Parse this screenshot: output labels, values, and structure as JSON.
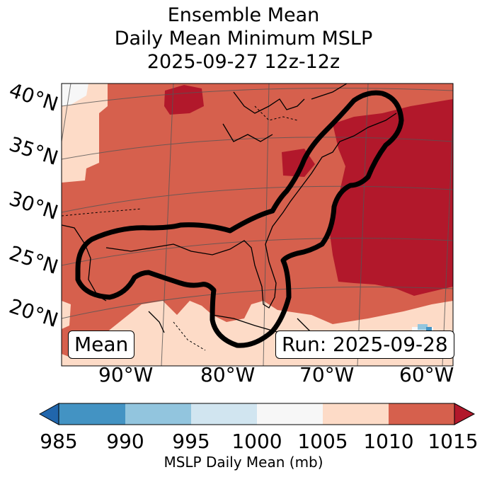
{
  "title": {
    "line1": "Ensemble Mean",
    "line2": "Daily Mean Minimum MSLP",
    "line3": "2025-09-27 12z-12z"
  },
  "lat_labels": [
    "40°N",
    "35°N",
    "30°N",
    "25°N",
    "20°N"
  ],
  "lon_labels": [
    "90°W",
    "80°W",
    "70°W",
    "60°W"
  ],
  "badges": {
    "mean": "Mean",
    "run": "Run: 2025-09-28"
  },
  "colorbar": {
    "ticks": [
      "985",
      "990",
      "995",
      "1000",
      "1005",
      "1010",
      "1015"
    ],
    "label": "MSLP Daily Mean (mb)",
    "colors": [
      "#2166ac",
      "#4393c3",
      "#92c5de",
      "#d1e5f0",
      "#f7f7f7",
      "#fddbc7",
      "#d6604d",
      "#b2182b"
    ]
  },
  "colors": {
    "bin_1005_1010": "#fddbc7",
    "bin_1010_1015": "#d6604d",
    "bin_above_1015": "#b2182b",
    "bin_1000_1005": "#f7f7f7",
    "bin_990_995": "#92c5de",
    "bin_985_990": "#4393c3",
    "contour": "#000000",
    "coast": "#000000",
    "grid": "#555555"
  }
}
